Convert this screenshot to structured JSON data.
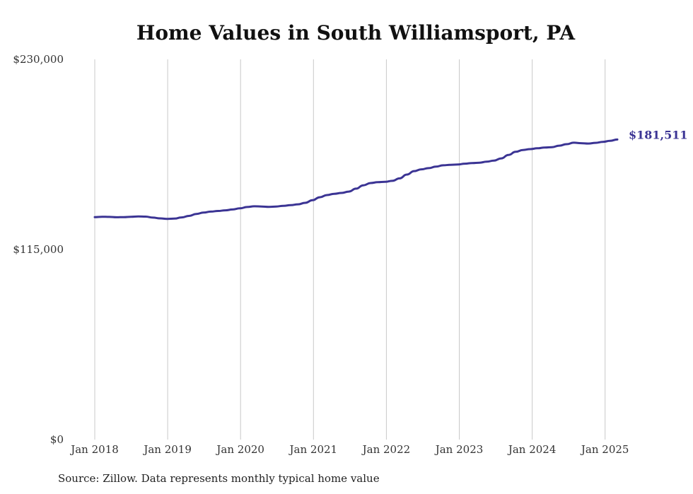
{
  "chart_data": {
    "type": "line",
    "title": "Home Values in South Williamsport, PA",
    "source": "Source: Zillow. Data represents monthly typical home value",
    "ylim": [
      0,
      230000
    ],
    "y_ticks": [
      {
        "value": 0,
        "label": "$0"
      },
      {
        "value": 115000,
        "label": "$115,000"
      },
      {
        "value": 230000,
        "label": "$230,000"
      }
    ],
    "x_ticks": [
      {
        "value": "2018-01",
        "label": "Jan 2018"
      },
      {
        "value": "2019-01",
        "label": "Jan 2019"
      },
      {
        "value": "2020-01",
        "label": "Jan 2020"
      },
      {
        "value": "2021-01",
        "label": "Jan 2021"
      },
      {
        "value": "2022-01",
        "label": "Jan 2022"
      },
      {
        "value": "2023-01",
        "label": "Jan 2023"
      },
      {
        "value": "2024-01",
        "label": "Jan 2024"
      },
      {
        "value": "2025-01",
        "label": "Jan 2025"
      }
    ],
    "grid": "vertical",
    "series": [
      {
        "color": "#3b3494",
        "end_label": "$181,511",
        "points": [
          [
            "2018-01",
            134600
          ],
          [
            "2018-02",
            134800
          ],
          [
            "2018-03",
            134700
          ],
          [
            "2018-04",
            134500
          ],
          [
            "2018-05",
            134600
          ],
          [
            "2018-06",
            134800
          ],
          [
            "2018-07",
            135000
          ],
          [
            "2018-08",
            134900
          ],
          [
            "2018-09",
            134300
          ],
          [
            "2018-10",
            133800
          ],
          [
            "2018-11",
            133500
          ],
          [
            "2018-12",
            133700
          ],
          [
            "2019-01",
            134400
          ],
          [
            "2019-02",
            135300
          ],
          [
            "2019-03",
            136500
          ],
          [
            "2019-04",
            137300
          ],
          [
            "2019-05",
            137900
          ],
          [
            "2019-06",
            138300
          ],
          [
            "2019-07",
            138700
          ],
          [
            "2019-08",
            139200
          ],
          [
            "2019-09",
            139900
          ],
          [
            "2019-10",
            140700
          ],
          [
            "2019-11",
            141100
          ],
          [
            "2019-12",
            141000
          ],
          [
            "2020-01",
            140800
          ],
          [
            "2020-02",
            141000
          ],
          [
            "2020-03",
            141400
          ],
          [
            "2020-04",
            141800
          ],
          [
            "2020-05",
            142300
          ],
          [
            "2020-06",
            143200
          ],
          [
            "2020-07",
            144800
          ],
          [
            "2020-08",
            146600
          ],
          [
            "2020-09",
            147900
          ],
          [
            "2020-10",
            148700
          ],
          [
            "2020-11",
            149200
          ],
          [
            "2020-12",
            150000
          ],
          [
            "2021-01",
            151800
          ],
          [
            "2021-02",
            153800
          ],
          [
            "2021-03",
            155200
          ],
          [
            "2021-04",
            155700
          ],
          [
            "2021-05",
            155900
          ],
          [
            "2021-06",
            156500
          ],
          [
            "2021-07",
            158000
          ],
          [
            "2021-08",
            160300
          ],
          [
            "2021-09",
            162400
          ],
          [
            "2021-10",
            163500
          ],
          [
            "2021-11",
            164200
          ],
          [
            "2021-12",
            165100
          ],
          [
            "2022-01",
            165900
          ],
          [
            "2022-02",
            166200
          ],
          [
            "2022-03",
            166400
          ],
          [
            "2022-04",
            166900
          ],
          [
            "2022-05",
            167300
          ],
          [
            "2022-06",
            167500
          ],
          [
            "2022-07",
            168100
          ],
          [
            "2022-08",
            168800
          ],
          [
            "2022-09",
            170100
          ],
          [
            "2022-10",
            172200
          ],
          [
            "2022-11",
            174100
          ],
          [
            "2022-12",
            175200
          ],
          [
            "2023-01",
            175700
          ],
          [
            "2023-02",
            176200
          ],
          [
            "2023-03",
            176700
          ],
          [
            "2023-04",
            176900
          ],
          [
            "2023-05",
            177800
          ],
          [
            "2023-06",
            178700
          ],
          [
            "2023-07",
            179600
          ],
          [
            "2023-08",
            179300
          ],
          [
            "2023-09",
            179100
          ],
          [
            "2023-10",
            179500
          ],
          [
            "2023-11",
            180100
          ],
          [
            "2023-12",
            180700
          ],
          [
            "2024-01",
            181511
          ]
        ]
      }
    ]
  }
}
